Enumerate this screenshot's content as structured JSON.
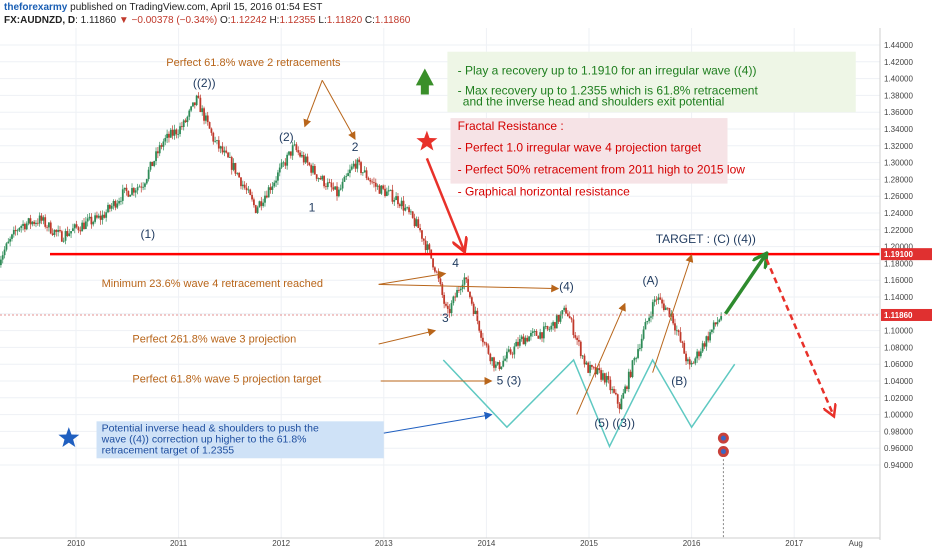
{
  "header": {
    "author": "theforexarmy",
    "published": "published on TradingView.com, April 15, 2016 01:54 EST",
    "symbol": "FX:AUDNZD, D",
    "last": "1.11860",
    "change_arrow": "▼",
    "change": "−0.00378 (−0.34%)",
    "o_label": "O:",
    "o": "1.12242",
    "h_label": "H:",
    "h": "1.12355",
    "l_label": "L:",
    "l": "1.11820",
    "c_label": "C:",
    "c": "1.11860"
  },
  "colors": {
    "up_candle": "#2e8b57",
    "down_candle": "#c0392b",
    "resistance": "#ff0000",
    "annotation": "#b8651a",
    "wave_label": "#1f3a5f",
    "green_box_text": "#1e7e1e",
    "pink_box_text": "#d40000",
    "price_marker": "#e03030",
    "pattern_line": "#5fc9c2"
  },
  "chart_data": {
    "type": "candlestick",
    "symbol": "FX:AUDNZD",
    "timeframe": "D",
    "x_ticks": [
      "2010",
      "2011",
      "2012",
      "2013",
      "2014",
      "2015",
      "2016",
      "2017",
      "Aug"
    ],
    "y_ticks": [
      "1.44000",
      "1.42000",
      "1.40000",
      "1.38000",
      "1.36000",
      "1.34000",
      "1.32000",
      "1.30000",
      "1.28000",
      "1.26000",
      "1.24000",
      "1.22000",
      "1.20000",
      "1.18000",
      "1.16000",
      "1.14000",
      "1.12000",
      "1.10000",
      "1.08000",
      "1.06000",
      "1.04000",
      "1.02000",
      "1.00000",
      "0.98000",
      "0.96000",
      "0.94000"
    ],
    "ylim": [
      0.93,
      1.45
    ],
    "price_path": [
      {
        "t": 2009.25,
        "p": 1.185
      },
      {
        "t": 2009.45,
        "p": 1.225
      },
      {
        "t": 2009.65,
        "p": 1.232
      },
      {
        "t": 2009.85,
        "p": 1.212
      },
      {
        "t": 2010.05,
        "p": 1.225
      },
      {
        "t": 2010.25,
        "p": 1.235
      },
      {
        "t": 2010.45,
        "p": 1.262
      },
      {
        "t": 2010.65,
        "p": 1.275
      },
      {
        "t": 2010.85,
        "p": 1.325
      },
      {
        "t": 2011.05,
        "p": 1.345
      },
      {
        "t": 2011.18,
        "p": 1.375
      },
      {
        "t": 2011.35,
        "p": 1.325
      },
      {
        "t": 2011.55,
        "p": 1.292
      },
      {
        "t": 2011.75,
        "p": 1.245
      },
      {
        "t": 2011.95,
        "p": 1.282
      },
      {
        "t": 2012.12,
        "p": 1.318
      },
      {
        "t": 2012.35,
        "p": 1.285
      },
      {
        "t": 2012.55,
        "p": 1.262
      },
      {
        "t": 2012.72,
        "p": 1.3
      },
      {
        "t": 2012.92,
        "p": 1.272
      },
      {
        "t": 2013.15,
        "p": 1.255
      },
      {
        "t": 2013.35,
        "p": 1.22
      },
      {
        "t": 2013.5,
        "p": 1.175
      },
      {
        "t": 2013.62,
        "p": 1.118
      },
      {
        "t": 2013.78,
        "p": 1.165
      },
      {
        "t": 2013.98,
        "p": 1.085
      },
      {
        "t": 2014.1,
        "p": 1.055
      },
      {
        "t": 2014.35,
        "p": 1.09
      },
      {
        "t": 2014.6,
        "p": 1.1
      },
      {
        "t": 2014.78,
        "p": 1.125
      },
      {
        "t": 2014.98,
        "p": 1.055
      },
      {
        "t": 2015.15,
        "p": 1.045
      },
      {
        "t": 2015.3,
        "p": 1.01
      },
      {
        "t": 2015.48,
        "p": 1.08
      },
      {
        "t": 2015.65,
        "p": 1.14
      },
      {
        "t": 2015.8,
        "p": 1.12
      },
      {
        "t": 2015.98,
        "p": 1.055
      },
      {
        "t": 2016.12,
        "p": 1.085
      },
      {
        "t": 2016.29,
        "p": 1.1186
      }
    ],
    "last_price": 1.1186,
    "last_price_label": "1.11860",
    "resistance_level": 1.191,
    "resistance_label": "1.19100",
    "target_label": "TARGET : (C) ((4))",
    "wave_labels": [
      {
        "text": "((2))",
        "t": 2011.25,
        "p": 1.39
      },
      {
        "text": "(1)",
        "t": 2010.7,
        "p": 1.21
      },
      {
        "text": "(2)",
        "t": 2012.05,
        "p": 1.326
      },
      {
        "text": "1",
        "t": 2012.3,
        "p": 1.242
      },
      {
        "text": "2",
        "t": 2012.72,
        "p": 1.314
      },
      {
        "text": "4",
        "t": 2013.7,
        "p": 1.176
      },
      {
        "text": "3",
        "t": 2013.6,
        "p": 1.11
      },
      {
        "text": "(4)",
        "t": 2014.78,
        "p": 1.148
      },
      {
        "text": "5 (3)",
        "t": 2014.22,
        "p": 1.036
      },
      {
        "text": "(5) ((3))",
        "t": 2015.25,
        "p": 0.985
      },
      {
        "text": "(A)",
        "t": 2015.6,
        "p": 1.155
      },
      {
        "text": "(B)",
        "t": 2015.88,
        "p": 1.035
      }
    ],
    "annotations": [
      "Perfect 61.8% wave 2 retracements",
      "Minimum 23.6% wave 4 retracement reached",
      "Perfect 261.8% wave 3 projection",
      "Perfect 61.8% wave 5 projection target"
    ],
    "green_box": [
      "- Play a recovery up to 1.1910 for an irregular wave ((4))",
      "- Max recovery up to 1.2355 which is 61.8% retracement",
      "and the inverse head and shoulders exit potential"
    ],
    "pink_box": {
      "title": "Fractal Resistance :",
      "items": [
        "- Perfect 1.0 irregular wave 4 projection target",
        "- Perfect 50% retracement from 2011 high to 2015 low",
        "- Graphical horizontal resistance"
      ]
    },
    "blue_note": [
      "Potential inverse head & shoulders to push the",
      "wave ((4)) correction up higher to the 61.8%",
      "retracement target of 1.2355"
    ]
  }
}
